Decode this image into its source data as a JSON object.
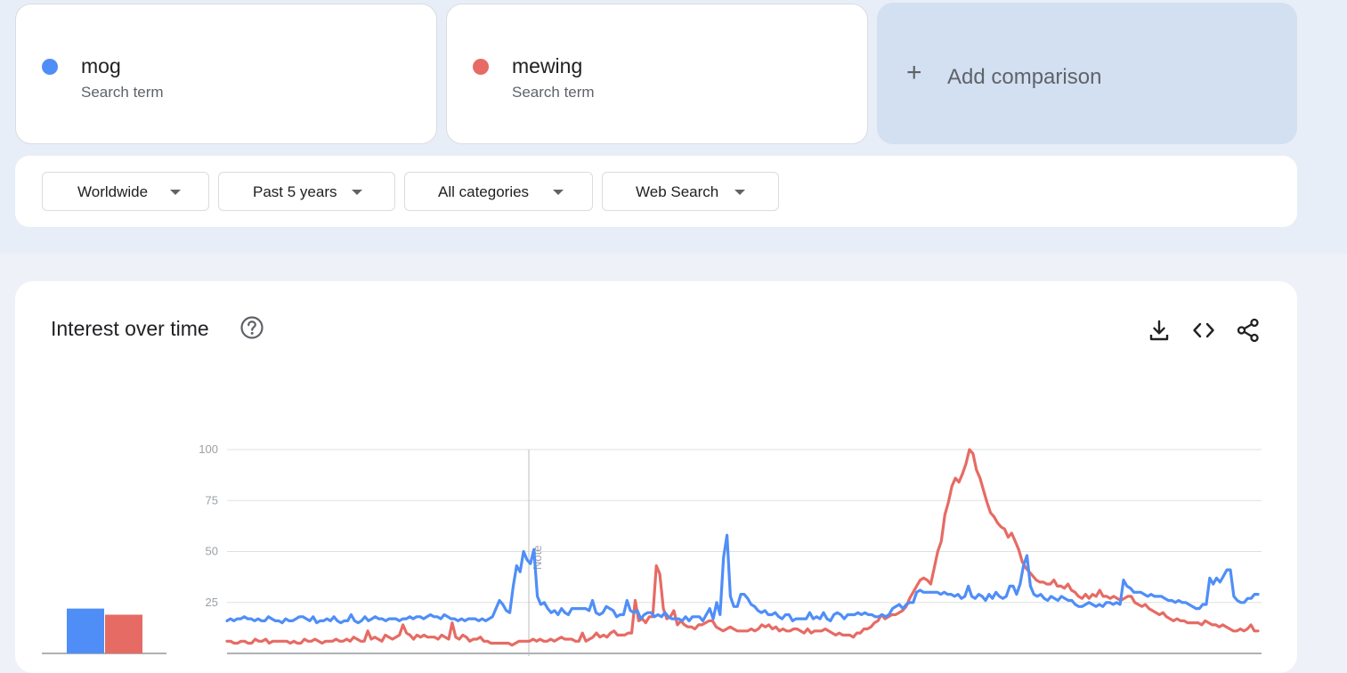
{
  "terms": [
    {
      "name": "mog",
      "type": "Search term",
      "color": "#4f8ef7"
    },
    {
      "name": "mewing",
      "type": "Search term",
      "color": "#e66b64"
    }
  ],
  "add_comparison": {
    "icon": "plus-icon",
    "label": "Add comparison"
  },
  "filters": [
    {
      "label": "Worldwide"
    },
    {
      "label": "Past 5 years"
    },
    {
      "label": "All categories"
    },
    {
      "label": "Web Search"
    }
  ],
  "chart": {
    "title": "Interest over time",
    "icons": [
      "help-icon",
      "download-icon",
      "embed-code-icon",
      "share-icon"
    ]
  },
  "chart_data": {
    "type": "line",
    "title": "Interest over time",
    "ylim": [
      0,
      100
    ],
    "yticks": [
      "100",
      "75",
      "50",
      "25"
    ],
    "grid": true,
    "annotation": "Note",
    "series": [
      {
        "name": "mog",
        "color": "#4f8ef7",
        "average": 22,
        "values": [
          16,
          17,
          16,
          17,
          17,
          18,
          17,
          17,
          16,
          17,
          16,
          16,
          18,
          17,
          16,
          16,
          15,
          17,
          16,
          16,
          17,
          18,
          18,
          17,
          16,
          18,
          15,
          16,
          16,
          17,
          16,
          18,
          16,
          15,
          16,
          16,
          19,
          16,
          15,
          16,
          18,
          16,
          17,
          18,
          17,
          17,
          16,
          17,
          17,
          17,
          16,
          17,
          17,
          18,
          17,
          18,
          18,
          17,
          18,
          19,
          18,
          18,
          17,
          19,
          18,
          17,
          17,
          16,
          17,
          16,
          17,
          17,
          17,
          16,
          17,
          16,
          17,
          18,
          22,
          26,
          24,
          21,
          20,
          33,
          43,
          40,
          50,
          46,
          44,
          51,
          28,
          24,
          25,
          22,
          20,
          21,
          19,
          22,
          20,
          19,
          22,
          22,
          22,
          22,
          22,
          21,
          26,
          20,
          19,
          20,
          23,
          22,
          21,
          18,
          19,
          19,
          26,
          21,
          20,
          21,
          17,
          19,
          20,
          20,
          18,
          19,
          18,
          20,
          18,
          17,
          17,
          17,
          16,
          18,
          16,
          18,
          18,
          18,
          16,
          19,
          22,
          17,
          25,
          19,
          47,
          58,
          28,
          23,
          23,
          29,
          29,
          27,
          24,
          23,
          21,
          20,
          21,
          19,
          19,
          20,
          18,
          17,
          19,
          19,
          16,
          17,
          17,
          17,
          17,
          20,
          17,
          18,
          17,
          20,
          17,
          16,
          19,
          20,
          19,
          17,
          19,
          19,
          19,
          20,
          19,
          20,
          19,
          19,
          18,
          18,
          19,
          18,
          19,
          22,
          23,
          24,
          22,
          24,
          25,
          25,
          30,
          31,
          30,
          30,
          30,
          30,
          30,
          29,
          30,
          29,
          29,
          28,
          29,
          27,
          28,
          33,
          28,
          27,
          29,
          28,
          26,
          29,
          27,
          30,
          28,
          27,
          28,
          33,
          33,
          29,
          34,
          43,
          48,
          33,
          29,
          28,
          29,
          27,
          26,
          28,
          27,
          26,
          28,
          27,
          26,
          26,
          24,
          23,
          23,
          24,
          25,
          24,
          23,
          24,
          23,
          25,
          25,
          24,
          25,
          24,
          36,
          33,
          32,
          30,
          30,
          30,
          29,
          28,
          29,
          28,
          28,
          28,
          27,
          26,
          26,
          25,
          26,
          25,
          25,
          24,
          23,
          22,
          22,
          24,
          24,
          37,
          34,
          37,
          35,
          38,
          41,
          41,
          28,
          26,
          25,
          25,
          27,
          27,
          29,
          29
        ]
      },
      {
        "name": "mewing",
        "color": "#e66b64",
        "average": 19,
        "values": [
          6,
          6,
          5,
          5,
          6,
          6,
          5,
          5,
          7,
          6,
          6,
          7,
          5,
          6,
          6,
          6,
          6,
          6,
          5,
          6,
          5,
          5,
          7,
          6,
          6,
          7,
          6,
          5,
          6,
          6,
          6,
          7,
          6,
          6,
          7,
          6,
          8,
          7,
          6,
          6,
          11,
          7,
          8,
          7,
          6,
          9,
          8,
          7,
          8,
          9,
          14,
          10,
          9,
          7,
          9,
          8,
          9,
          8,
          8,
          8,
          7,
          9,
          8,
          7,
          15,
          8,
          7,
          9,
          8,
          6,
          7,
          7,
          8,
          6,
          6,
          5,
          5,
          5,
          5,
          5,
          5,
          4,
          5,
          6,
          6,
          6,
          6,
          7,
          6,
          7,
          6,
          6,
          7,
          6,
          7,
          8,
          7,
          7,
          7,
          6,
          6,
          10,
          6,
          7,
          8,
          10,
          8,
          9,
          8,
          10,
          11,
          9,
          9,
          9,
          10,
          10,
          26,
          16,
          17,
          15,
          18,
          18,
          43,
          39,
          22,
          17,
          18,
          21,
          14,
          16,
          14,
          13,
          13,
          12,
          14,
          14,
          15,
          16,
          16,
          13,
          12,
          11,
          12,
          13,
          12,
          11,
          11,
          11,
          11,
          12,
          11,
          12,
          14,
          13,
          14,
          12,
          13,
          11,
          12,
          11,
          11,
          12,
          12,
          11,
          10,
          12,
          10,
          11,
          11,
          11,
          12,
          11,
          10,
          9,
          10,
          9,
          9,
          9,
          8,
          10,
          10,
          12,
          12,
          13,
          15,
          16,
          19,
          17,
          18,
          19,
          19,
          20,
          21,
          23,
          27,
          30,
          33,
          36,
          37,
          36,
          34,
          42,
          50,
          55,
          68,
          74,
          82,
          86,
          84,
          88,
          93,
          100,
          98,
          90,
          86,
          80,
          74,
          69,
          67,
          64,
          62,
          61,
          57,
          59,
          55,
          51,
          45,
          42,
          40,
          38,
          36,
          35,
          35,
          34,
          34,
          36,
          33,
          33,
          32,
          34,
          31,
          30,
          28,
          27,
          29,
          27,
          29,
          28,
          31,
          28,
          28,
          27,
          28,
          27,
          26,
          27,
          28,
          28,
          25,
          24,
          23,
          24,
          22,
          21,
          20,
          19,
          20,
          18,
          17,
          16,
          17,
          16,
          16,
          15,
          15,
          15,
          15,
          14,
          16,
          15,
          14,
          14,
          13,
          14,
          13,
          12,
          11,
          11,
          12,
          11,
          12,
          14,
          11,
          11
        ]
      }
    ]
  }
}
